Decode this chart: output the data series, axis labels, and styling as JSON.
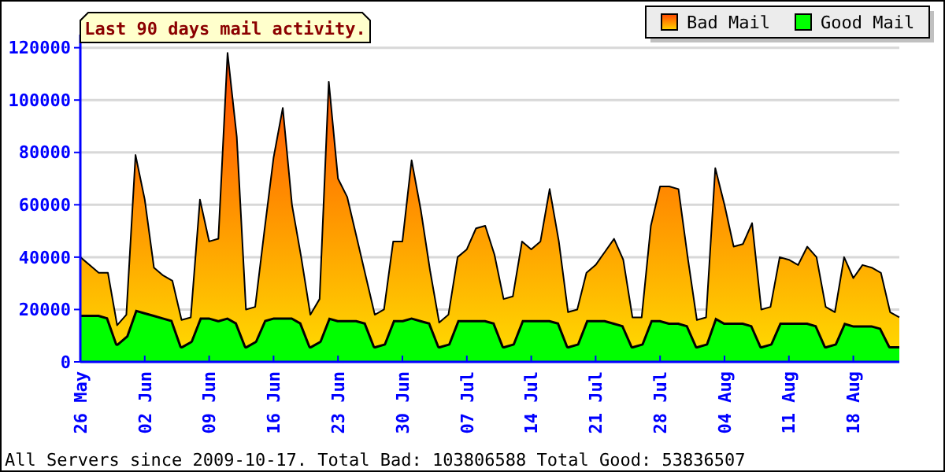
{
  "chart_data": {
    "type": "area",
    "stacked": true,
    "title": "Last 90 days mail activity.",
    "annotations": [
      "All Servers since 2009-10-17. Total Bad: 103806588 Total Good: 53836507"
    ],
    "x": [
      "--05-26",
      "--05-27",
      "--05-28",
      "--05-29",
      "--05-30",
      "--05-31",
      "--06-01",
      "--06-02",
      "--06-03",
      "--06-04",
      "--06-05",
      "--06-06",
      "--06-07",
      "--06-08",
      "--06-09",
      "--06-10",
      "--06-11",
      "--06-12",
      "--06-13",
      "--06-14",
      "--06-15",
      "--06-16",
      "--06-17",
      "--06-18",
      "--06-19",
      "--06-20",
      "--06-21",
      "--06-22",
      "--06-23",
      "--06-24",
      "--06-25",
      "--06-26",
      "--06-27",
      "--06-28",
      "--06-29",
      "--06-30",
      "--07-01",
      "--07-02",
      "--07-03",
      "--07-04",
      "--07-05",
      "--07-06",
      "--07-07",
      "--07-08",
      "--07-09",
      "--07-10",
      "--07-11",
      "--07-12",
      "--07-13",
      "--07-14",
      "--07-15",
      "--07-16",
      "--07-17",
      "--07-18",
      "--07-19",
      "--07-20",
      "--07-21",
      "--07-22",
      "--07-23",
      "--07-24",
      "--07-25",
      "--07-26",
      "--07-27",
      "--07-28",
      "--07-29",
      "--07-30",
      "--07-31",
      "--08-01",
      "--08-02",
      "--08-03",
      "--08-04",
      "--08-05",
      "--08-06",
      "--08-07",
      "--08-08",
      "--08-09",
      "--08-10",
      "--08-11",
      "--08-12",
      "--08-13",
      "--08-14",
      "--08-15",
      "--08-16",
      "--08-17",
      "--08-18",
      "--08-19",
      "--08-20",
      "--08-21",
      "--08-22",
      "--08-23"
    ],
    "series": [
      {
        "name": "Good Mail",
        "color": "#00ff00",
        "values": [
          18000,
          18000,
          18000,
          17000,
          7000,
          10000,
          20000,
          19000,
          18000,
          17000,
          16000,
          6000,
          8000,
          17000,
          17000,
          16000,
          17000,
          15000,
          6000,
          8000,
          16000,
          17000,
          17000,
          17000,
          15000,
          6000,
          8000,
          17000,
          16000,
          16000,
          16000,
          15000,
          6000,
          7000,
          16000,
          16000,
          17000,
          16000,
          15000,
          6000,
          7000,
          16000,
          16000,
          16000,
          16000,
          15000,
          6000,
          7000,
          16000,
          16000,
          16000,
          16000,
          15000,
          6000,
          7000,
          16000,
          16000,
          16000,
          15000,
          14000,
          6000,
          7000,
          16000,
          16000,
          15000,
          15000,
          14000,
          6000,
          7000,
          17000,
          15000,
          15000,
          15000,
          14000,
          6000,
          7000,
          15000,
          15000,
          15000,
          15000,
          14000,
          6000,
          7000,
          15000,
          14000,
          14000,
          14000,
          13000,
          6000,
          6000
        ]
      },
      {
        "name": "Bad Mail",
        "color": "#ff9900",
        "values": [
          22000,
          19000,
          16000,
          17000,
          7000,
          8000,
          59000,
          43000,
          18000,
          16000,
          15000,
          10000,
          9000,
          45000,
          29000,
          31000,
          101000,
          71000,
          14000,
          13000,
          34000,
          61000,
          80000,
          43000,
          25000,
          12000,
          16000,
          90000,
          54000,
          47000,
          32000,
          18000,
          12000,
          13000,
          30000,
          30000,
          60000,
          42000,
          20000,
          9000,
          11000,
          24000,
          27000,
          35000,
          36000,
          26000,
          18000,
          18000,
          30000,
          27000,
          30000,
          50000,
          31000,
          13000,
          13000,
          18000,
          21000,
          26000,
          32000,
          25000,
          11000,
          10000,
          36000,
          51000,
          52000,
          51000,
          26000,
          10000,
          10000,
          57000,
          45000,
          29000,
          30000,
          39000,
          14000,
          14000,
          25000,
          24000,
          22000,
          29000,
          26000,
          15000,
          12000,
          25000,
          18000,
          23000,
          22000,
          21000,
          13000,
          11000
        ]
      }
    ],
    "xlim": [
      "--05-26",
      "--08-23"
    ],
    "xticks": [
      {
        "value": "--05-26",
        "label": "26 May"
      },
      {
        "value": "--06-02",
        "label": "02 Jun"
      },
      {
        "value": "--06-09",
        "label": "09 Jun"
      },
      {
        "value": "--06-16",
        "label": "16 Jun"
      },
      {
        "value": "--06-23",
        "label": "23 Jun"
      },
      {
        "value": "--06-30",
        "label": "30 Jun"
      },
      {
        "value": "--07-07",
        "label": "07 Jul"
      },
      {
        "value": "--07-14",
        "label": "14 Jul"
      },
      {
        "value": "--07-21",
        "label": "21 Jul"
      },
      {
        "value": "--07-28",
        "label": "28 Jul"
      },
      {
        "value": "--08-04",
        "label": "04 Aug"
      },
      {
        "value": "--08-11",
        "label": "11 Aug"
      },
      {
        "value": "--08-18",
        "label": "18 Aug"
      }
    ],
    "ylim": [
      0,
      125000
    ],
    "yticks": [
      0,
      20000,
      40000,
      60000,
      80000,
      100000,
      120000
    ],
    "grid": "y",
    "legend": "top right"
  }
}
